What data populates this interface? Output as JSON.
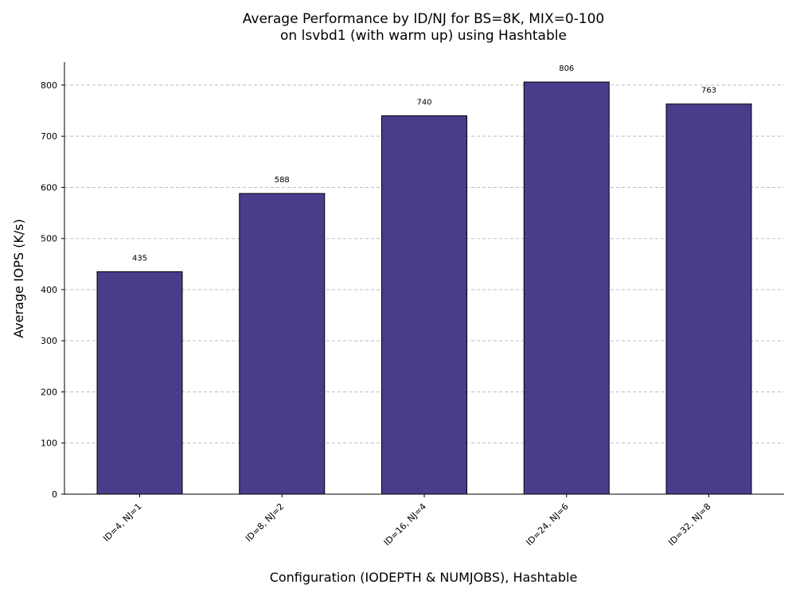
{
  "chart_data": {
    "type": "bar",
    "title_line1": "Average Performance by ID/NJ for BS=8K, MIX=0-100",
    "title_line2": "on lsvbd1 (with warm up) using Hashtable",
    "xlabel": "Configuration (IODEPTH & NUMJOBS), Hashtable",
    "ylabel": "Average IOPS (K/s)",
    "categories": [
      "ID=4, NJ=1",
      "ID=8, NJ=2",
      "ID=16, NJ=4",
      "ID=24, NJ=6",
      "ID=32, NJ=8"
    ],
    "values": [
      435,
      588,
      740,
      806,
      763
    ],
    "value_labels": [
      "435",
      "588",
      "740",
      "806",
      "763"
    ],
    "ylim": [
      0,
      845
    ],
    "yticks": [
      0,
      100,
      200,
      300,
      400,
      500,
      600,
      700,
      800
    ],
    "ytick_labels": [
      "0",
      "100",
      "200",
      "300",
      "400",
      "500",
      "600",
      "700",
      "800"
    ],
    "grid": "y, dashed",
    "bar_color": "#483D8B",
    "edge_color": "#000000"
  }
}
